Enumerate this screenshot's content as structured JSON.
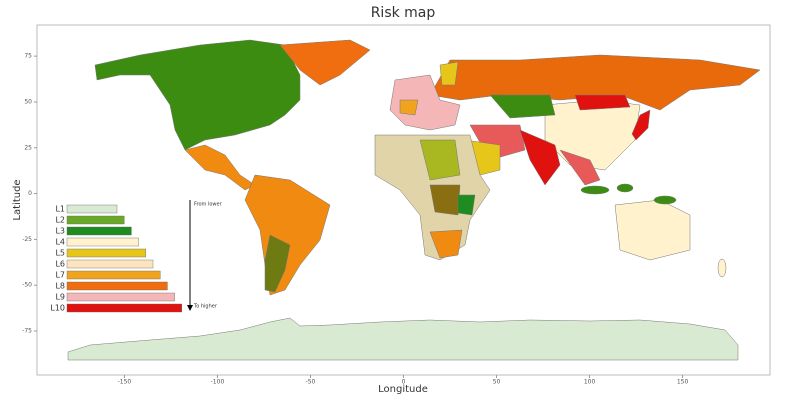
{
  "chart_data": {
    "type": "map",
    "title": "Risk map",
    "xlabel": "Longitude",
    "ylabel": "Latitude",
    "xlim": [
      -197,
      197
    ],
    "ylim": [
      -99,
      92
    ],
    "xticks": [
      -150,
      -100,
      -50,
      0,
      50,
      100,
      150
    ],
    "yticks": [
      75,
      50,
      25,
      0,
      -25,
      -50,
      -75
    ],
    "legend": {
      "items": [
        {
          "name": "L1",
          "color": "#d9ead3"
        },
        {
          "name": "L2",
          "color": "#6aa829"
        },
        {
          "name": "L3",
          "color": "#1e8c1e"
        },
        {
          "name": "L4",
          "color": "#fff2cc"
        },
        {
          "name": "L5",
          "color": "#e6c619"
        },
        {
          "name": "L6",
          "color": "#fde4c0"
        },
        {
          "name": "L7",
          "color": "#f0a31e"
        },
        {
          "name": "L8",
          "color": "#f06d10"
        },
        {
          "name": "L9",
          "color": "#f4b6b6"
        },
        {
          "name": "L10",
          "color": "#e0120f"
        }
      ],
      "start_label": "From lower",
      "end_label": "To higher"
    }
  }
}
